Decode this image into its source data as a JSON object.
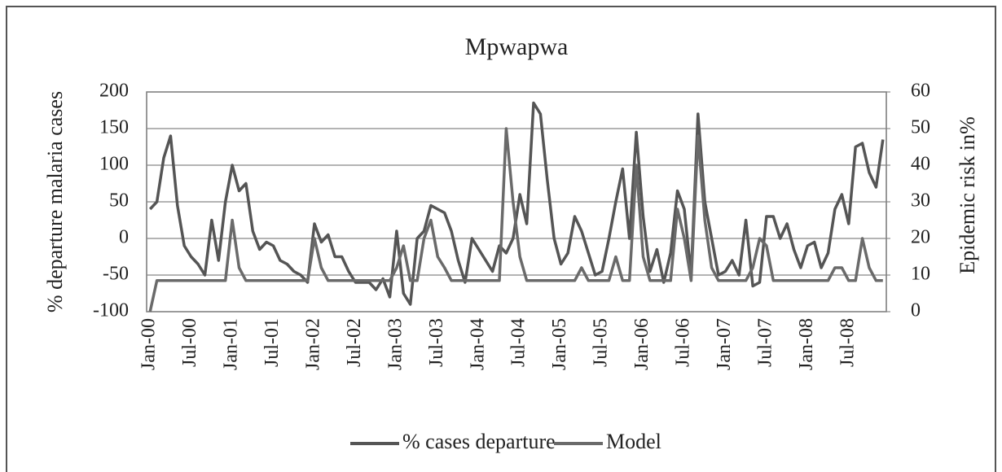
{
  "chart_data": {
    "type": "line",
    "title": "Mpwapwa",
    "y_label": "% departure malaria cases",
    "y2_label": "Epidemic risk in%",
    "categories": [
      "Jan-00",
      null,
      null,
      null,
      null,
      null,
      "Jul-00",
      null,
      null,
      null,
      null,
      null,
      "Jan-01",
      null,
      null,
      null,
      null,
      null,
      "Jul-01",
      null,
      null,
      null,
      null,
      null,
      "Jan-02",
      null,
      null,
      null,
      null,
      null,
      "Jul-02",
      null,
      null,
      null,
      null,
      null,
      "Jan-03",
      null,
      null,
      null,
      null,
      null,
      "Jul-03",
      null,
      null,
      null,
      null,
      null,
      "Jan-04",
      null,
      null,
      null,
      null,
      null,
      "Jul-04",
      null,
      null,
      null,
      null,
      null,
      "Jan-05",
      null,
      null,
      null,
      null,
      null,
      "Jul-05",
      null,
      null,
      null,
      null,
      null,
      "Jan-06",
      null,
      null,
      null,
      null,
      null,
      "Jul-06",
      null,
      null,
      null,
      null,
      null,
      "Jan-07",
      null,
      null,
      null,
      null,
      null,
      "Jul-07",
      null,
      null,
      null,
      null,
      null,
      "Jan-08",
      null,
      null,
      null,
      null,
      null,
      "Jul-08",
      null,
      null,
      null,
      null,
      null
    ],
    "series": [
      {
        "name": "% cases departure",
        "color": "#555555",
        "values": [
          40,
          50,
          110,
          140,
          45,
          -10,
          -25,
          -35,
          -50,
          25,
          -30,
          50,
          100,
          65,
          75,
          10,
          -15,
          -5,
          -10,
          -30,
          -35,
          -45,
          -50,
          -60,
          20,
          -5,
          5,
          -25,
          -25,
          -45,
          -60,
          -60,
          -60,
          -70,
          -55,
          -80,
          10,
          -75,
          -90,
          0,
          10,
          45,
          40,
          35,
          10,
          -30,
          -60,
          0,
          -15,
          -30,
          -45,
          -10,
          -20,
          0,
          60,
          20,
          185,
          170,
          80,
          0,
          -35,
          -20,
          30,
          10,
          -20,
          -50,
          -45,
          0,
          50,
          95,
          0,
          145,
          30,
          -45,
          -15,
          -60,
          -20,
          65,
          40,
          -50,
          170,
          50,
          0,
          -50,
          -45,
          -30,
          -50,
          25,
          -65,
          -60,
          30,
          30,
          0,
          20,
          -15,
          -40,
          -10,
          -5,
          -40,
          -20,
          40,
          60,
          20,
          125,
          130,
          90,
          70,
          135
        ]
      },
      {
        "name": "Model",
        "color": "#6a6a6a",
        "axis": "y2",
        "values": [
          0,
          8.5,
          8.5,
          8.5,
          8.5,
          8.5,
          8.5,
          8.5,
          8.5,
          8.5,
          8.5,
          8.5,
          25,
          12,
          8.5,
          8.5,
          8.5,
          8.5,
          8.5,
          8.5,
          8.5,
          8.5,
          8.5,
          8.5,
          20,
          12,
          8.5,
          8.5,
          8.5,
          8.5,
          8.5,
          8.5,
          8.5,
          8.5,
          8.5,
          8.5,
          12,
          18,
          8.5,
          8.5,
          20,
          25,
          15,
          12,
          8.5,
          8.5,
          8.5,
          8.5,
          8.5,
          8.5,
          8.5,
          8.5,
          50,
          30,
          15,
          8.5,
          8.5,
          8.5,
          8.5,
          8.5,
          8.5,
          8.5,
          8.5,
          12,
          8.5,
          8.5,
          8.5,
          8.5,
          15,
          8.5,
          8.5,
          40,
          15,
          8.5,
          8.5,
          8.5,
          8.5,
          28,
          20,
          8.5,
          48,
          25,
          12,
          8.5,
          8.5,
          8.5,
          8.5,
          8.5,
          12,
          20,
          18,
          8.5,
          8.5,
          8.5,
          8.5,
          8.5,
          8.5,
          8.5,
          8.5,
          8.5,
          12,
          12,
          8.5,
          8.5,
          20,
          12,
          8.5,
          8.5
        ]
      }
    ],
    "ylim": [
      -100,
      200
    ],
    "yticks": [
      -100,
      -50,
      0,
      50,
      100,
      150,
      200
    ],
    "y2lim": [
      0,
      60
    ],
    "y2ticks": [
      0,
      10,
      20,
      30,
      40,
      50,
      60
    ],
    "grid": true,
    "legend": "bottom"
  }
}
